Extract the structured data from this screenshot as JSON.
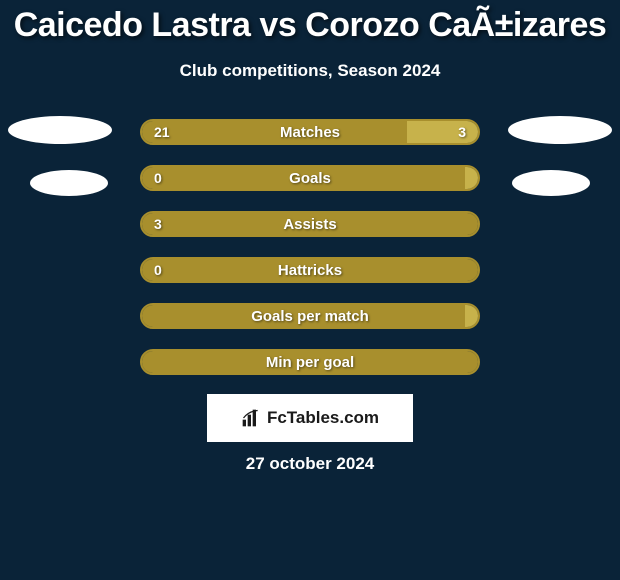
{
  "title": "Caicedo Lastra vs Corozo CaÃ±izares",
  "subtitle": "Club competitions, Season 2024",
  "date": "27 october 2024",
  "logo_text": "FcTables.com",
  "colors": {
    "background": "#0a2338",
    "bar_fill": "#a88f2d",
    "bar_alt": "#c7b24b",
    "white": "#ffffff"
  },
  "bars": [
    {
      "label": "Matches",
      "left_val": "21",
      "right_val": "3",
      "left_pct": 79,
      "right_pct": 21,
      "show_vals": true,
      "fill_color": "#a88f2d",
      "right_color": "#c7b24b"
    },
    {
      "label": "Goals",
      "left_val": "0",
      "right_val": "",
      "left_pct": 96,
      "right_pct": 4,
      "show_vals": true,
      "fill_color": "#a88f2d",
      "right_color": "#c7b24b"
    },
    {
      "label": "Assists",
      "left_val": "3",
      "right_val": "",
      "left_pct": 100,
      "right_pct": 0,
      "show_vals": true,
      "fill_color": "#a88f2d",
      "right_color": "#c7b24b"
    },
    {
      "label": "Hattricks",
      "left_val": "0",
      "right_val": "",
      "left_pct": 100,
      "right_pct": 0,
      "show_vals": true,
      "fill_color": "#a88f2d",
      "right_color": "#c7b24b"
    },
    {
      "label": "Goals per match",
      "left_val": "",
      "right_val": "",
      "left_pct": 96,
      "right_pct": 4,
      "show_vals": false,
      "fill_color": "#a88f2d",
      "right_color": "#c7b24b"
    },
    {
      "label": "Min per goal",
      "left_val": "",
      "right_val": "",
      "left_pct": 100,
      "right_pct": 0,
      "show_vals": false,
      "fill_color": "#a88f2d",
      "right_color": "#c7b24b"
    }
  ]
}
